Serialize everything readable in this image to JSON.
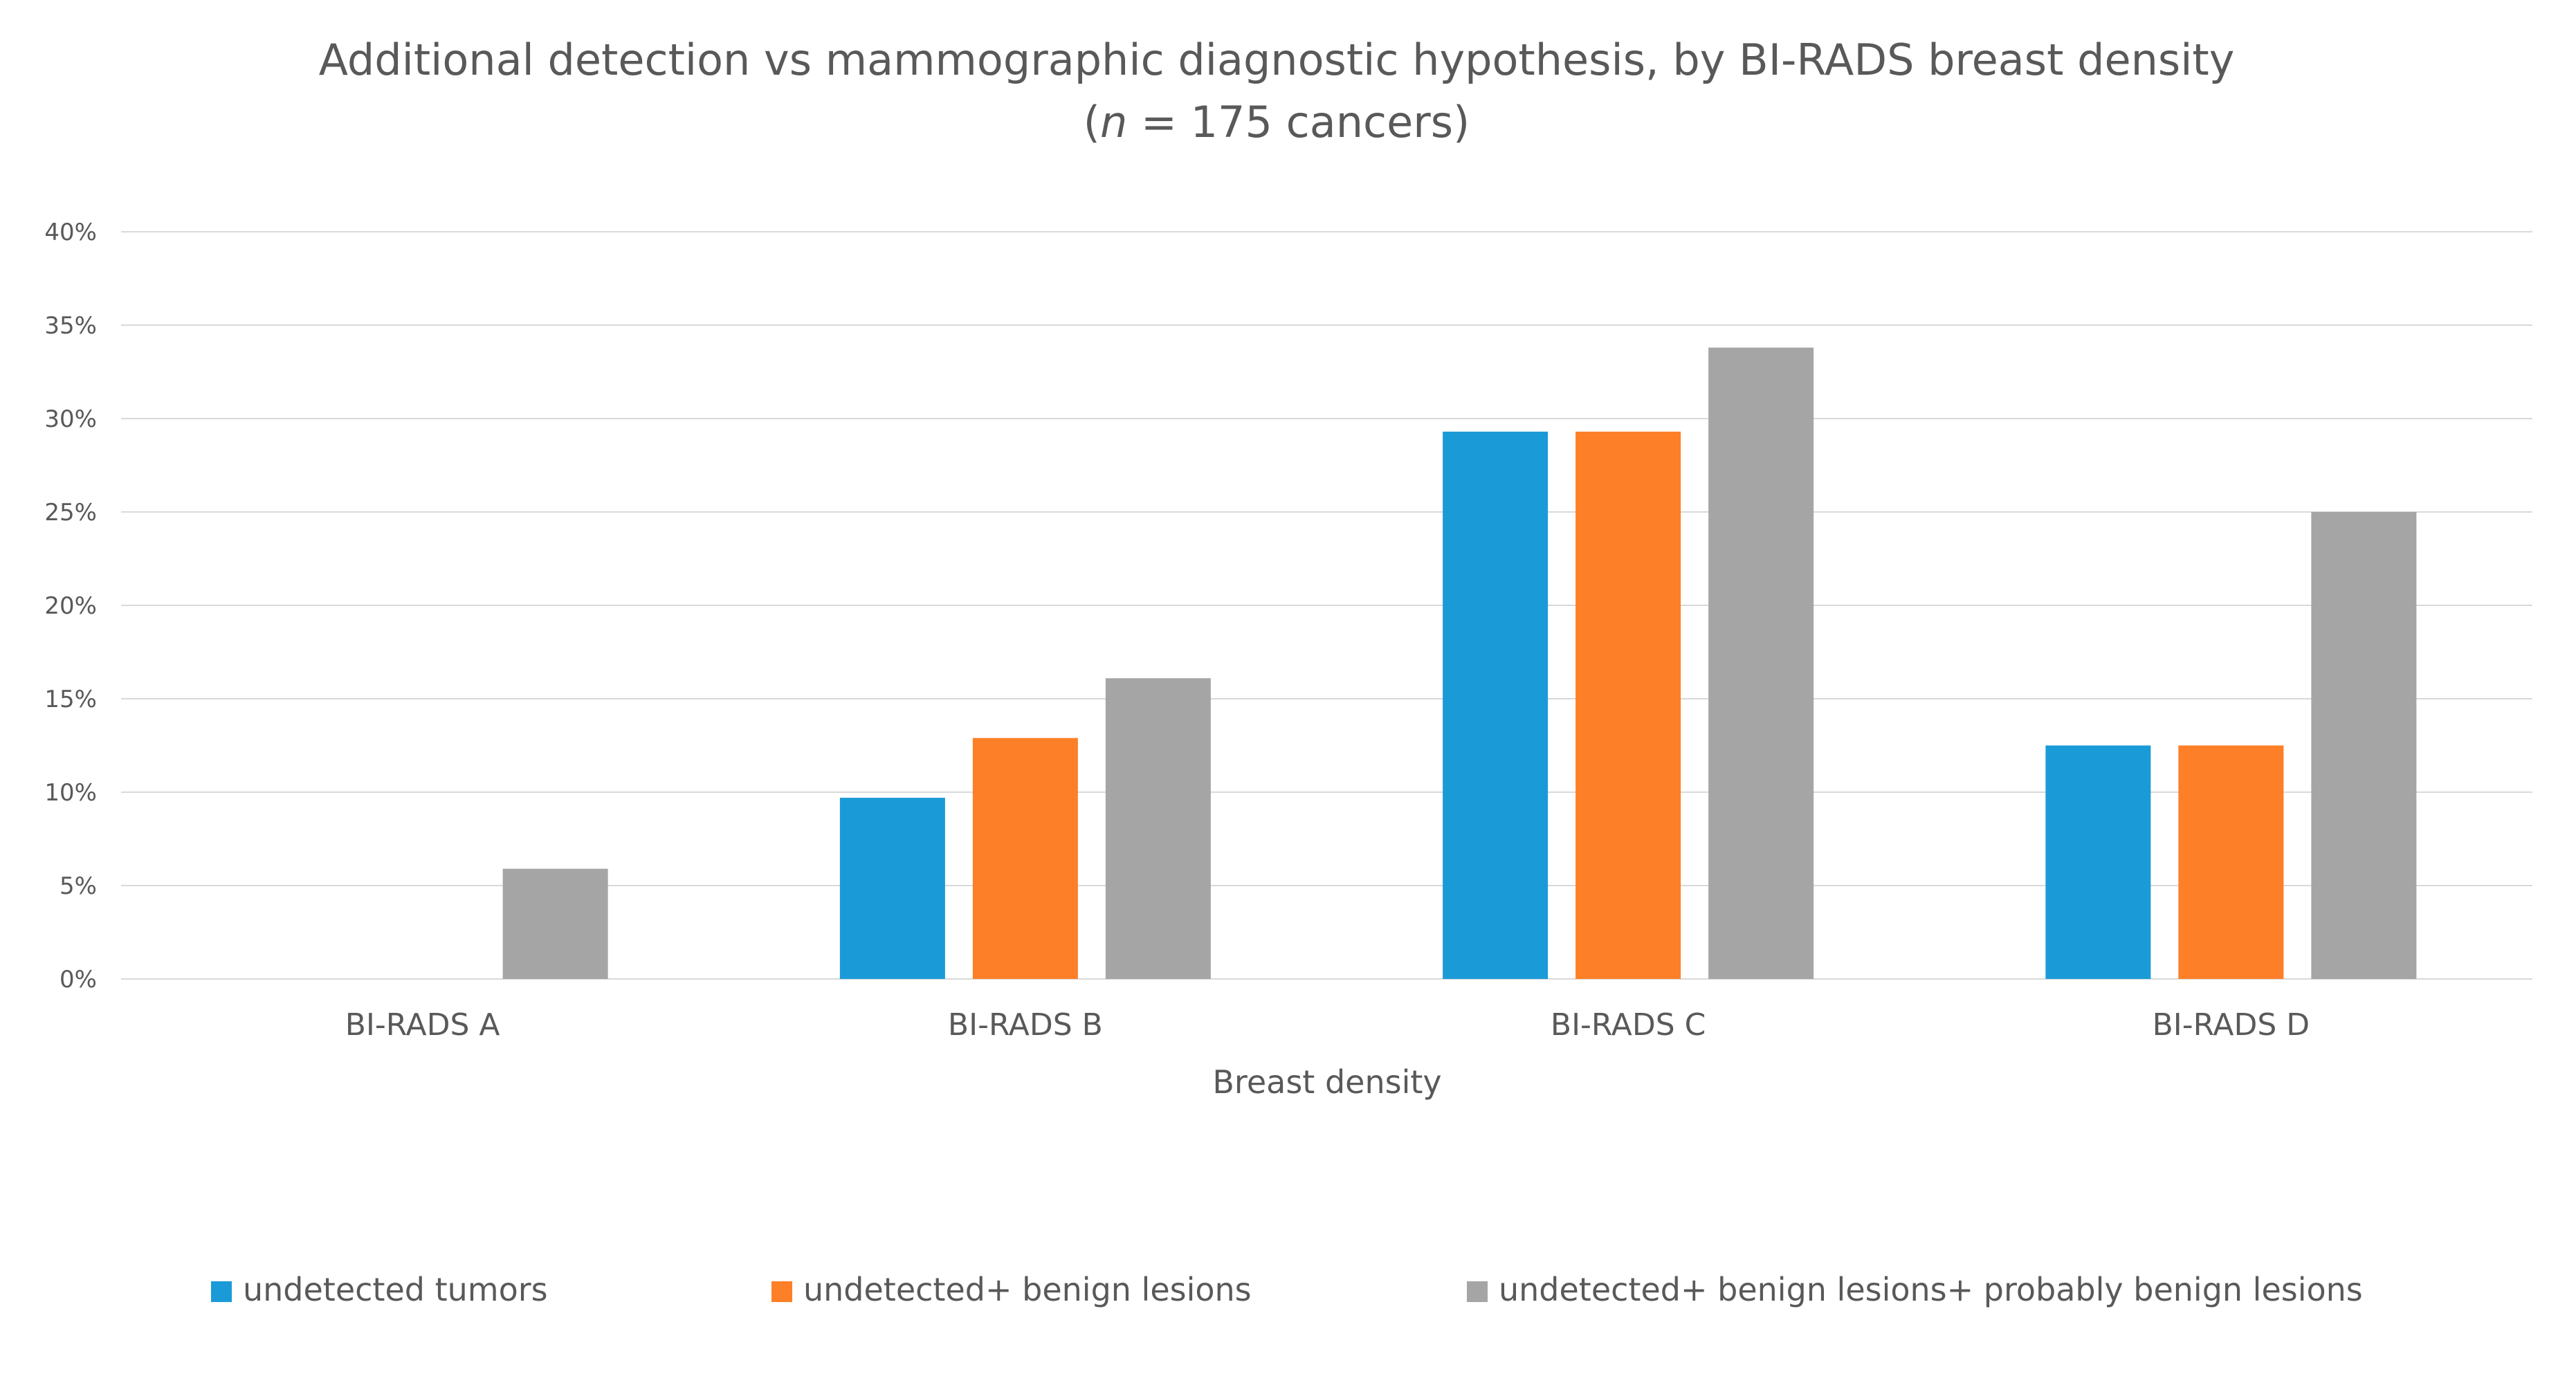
{
  "chart_data": {
    "type": "bar",
    "title": "Additional detection vs mammographic diagnostic hypothesis, by BI-RADS breast density",
    "subtitle_italic": "n",
    "subtitle_rest": " = 175 cancers)",
    "subtitle_open": "(",
    "xlabel": "Breast density",
    "ylabel": "",
    "ylim": [
      0,
      40
    ],
    "ytick_step": 5,
    "ytick_labels": [
      "0%",
      "5%",
      "10%",
      "15%",
      "20%",
      "25%",
      "30%",
      "35%",
      "40%"
    ],
    "categories": [
      "BI-RADS A",
      "BI-RADS B",
      "BI-RADS C",
      "BI-RADS D"
    ],
    "series": [
      {
        "name": "undetected tumors",
        "color": "#1a9bd7",
        "values": [
          0,
          9.7,
          29.3,
          12.5
        ]
      },
      {
        "name": "undetected+ benign lesions",
        "color": "#fd7f27",
        "values": [
          0,
          12.9,
          29.3,
          12.5
        ]
      },
      {
        "name": "undetected+ benign lesions+ probably benign lesions",
        "color": "#a5a5a5",
        "values": [
          5.9,
          16.1,
          33.8,
          25.0
        ]
      }
    ],
    "grid": true,
    "legend_position": "bottom"
  },
  "colors": {
    "gridline": "#d9d9d9",
    "text": "#595959",
    "title_text": "#595959"
  }
}
